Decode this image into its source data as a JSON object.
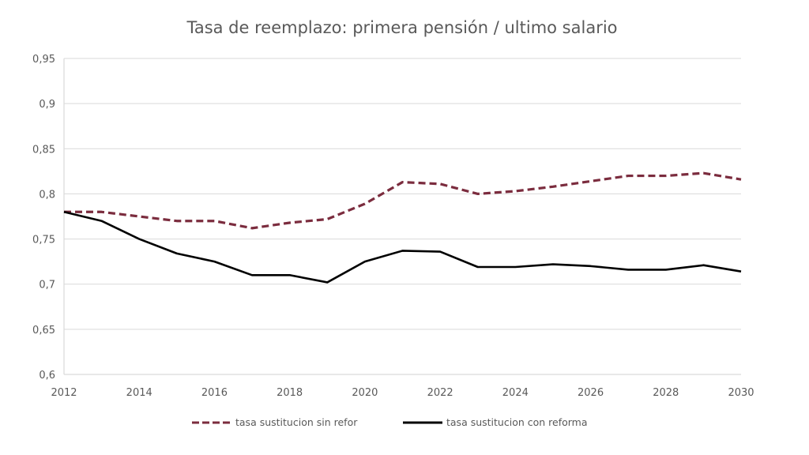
{
  "chart_data": {
    "type": "line",
    "title": "Tasa de reemplazo: primera pensión / ultimo salario",
    "xlabel": "",
    "ylabel": "",
    "x": [
      2012,
      2013,
      2014,
      2015,
      2016,
      2017,
      2018,
      2019,
      2020,
      2021,
      2022,
      2023,
      2024,
      2025,
      2026,
      2027,
      2028,
      2029,
      2030
    ],
    "xlim": [
      2012,
      2030
    ],
    "ylim": [
      0.6,
      0.95
    ],
    "x_ticks": [
      "2012",
      "2014",
      "2016",
      "2018",
      "2020",
      "2022",
      "2024",
      "2026",
      "2028",
      "2030"
    ],
    "x_tick_values": [
      2012,
      2014,
      2016,
      2018,
      2020,
      2022,
      2024,
      2026,
      2028,
      2030
    ],
    "y_ticks": [
      "0,6",
      "0,65",
      "0,7",
      "0,75",
      "0,8",
      "0,85",
      "0,9",
      "0,95"
    ],
    "y_tick_values": [
      0.6,
      0.65,
      0.7,
      0.75,
      0.8,
      0.85,
      0.9,
      0.95
    ],
    "grid": true,
    "legend_position": "bottom",
    "series": [
      {
        "name": "tasa sustitucion sin refor",
        "style": "dashed",
        "color": "#7b2c3e",
        "values": [
          0.78,
          0.78,
          0.775,
          0.77,
          0.77,
          0.762,
          0.768,
          0.772,
          0.789,
          0.813,
          0.811,
          0.8,
          0.803,
          0.808,
          0.814,
          0.82,
          0.82,
          0.823,
          0.816
        ]
      },
      {
        "name": "tasa sustitucion con reforma",
        "style": "solid",
        "color": "#000000",
        "values": [
          0.78,
          0.77,
          0.75,
          0.734,
          0.725,
          0.71,
          0.71,
          0.702,
          0.725,
          0.737,
          0.736,
          0.719,
          0.719,
          0.722,
          0.72,
          0.716,
          0.716,
          0.721,
          0.714
        ]
      }
    ]
  }
}
